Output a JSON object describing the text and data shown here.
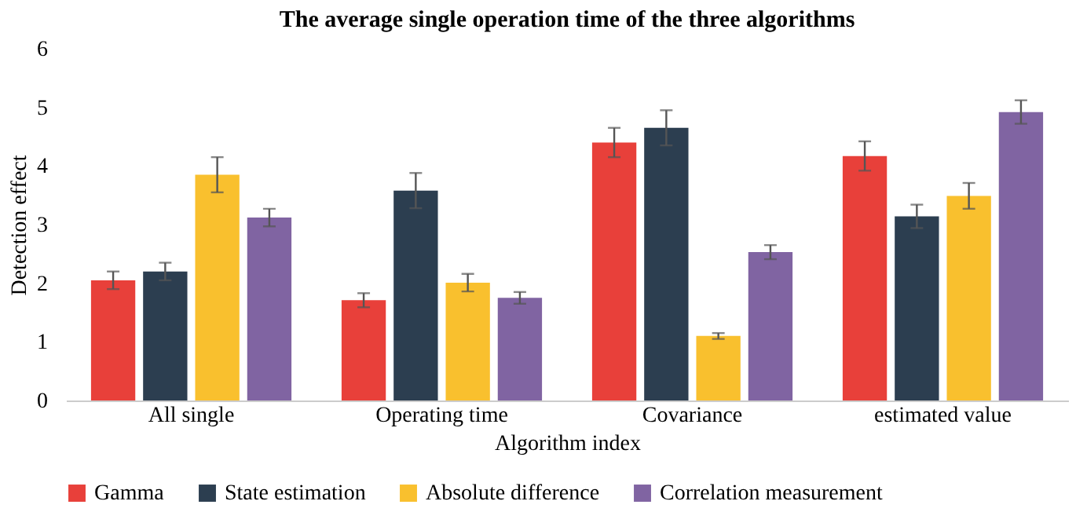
{
  "chart_data": {
    "type": "bar",
    "title": "The average single operation time of the three algorithms",
    "xlabel": "Algorithm index",
    "ylabel": "Detection effect",
    "categories": [
      "All single",
      "Operating time",
      "Covariance",
      "estimated value"
    ],
    "series": [
      {
        "name": "Gamma",
        "color": "#e8403a",
        "values": [
          2.05,
          1.71,
          4.4,
          4.17
        ],
        "errors": [
          0.15,
          0.12,
          0.25,
          0.25
        ]
      },
      {
        "name": "State estimation",
        "color": "#2c3e50",
        "values": [
          2.2,
          3.58,
          4.65,
          3.14
        ],
        "errors": [
          0.15,
          0.3,
          0.3,
          0.2
        ]
      },
      {
        "name": "Absolute difference",
        "color": "#f9c02e",
        "values": [
          3.85,
          2.01,
          1.1,
          3.49
        ],
        "errors": [
          0.3,
          0.15,
          0.05,
          0.22
        ]
      },
      {
        "name": "Correlation measurement",
        "color": "#8064a2",
        "values": [
          3.12,
          1.75,
          2.53,
          4.92
        ],
        "errors": [
          0.15,
          0.1,
          0.12,
          0.2
        ]
      }
    ],
    "ylim": [
      0,
      6
    ],
    "yticks": [
      0,
      1,
      2,
      3,
      4,
      5,
      6
    ],
    "grid": false,
    "legend": "bottom"
  }
}
